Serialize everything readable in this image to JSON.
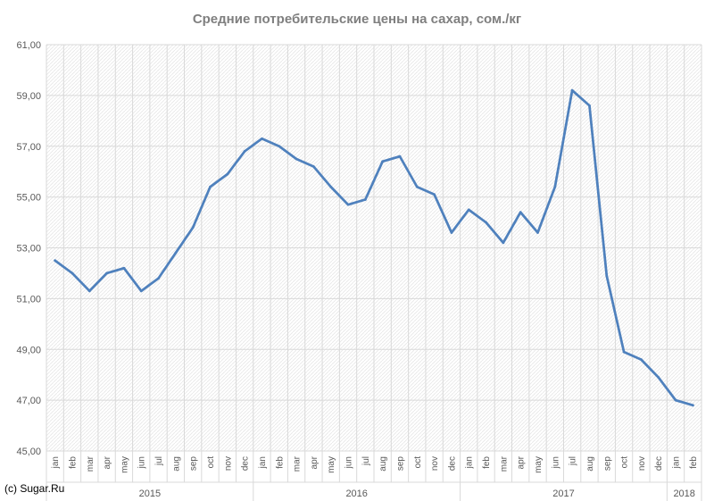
{
  "chart_data": {
    "type": "line",
    "title": "Средние потребительские цены на сахар, сом./кг",
    "ylim": [
      45,
      61
    ],
    "y_ticks": [
      "45,00",
      "47,00",
      "49,00",
      "51,00",
      "53,00",
      "55,00",
      "57,00",
      "59,00",
      "61,00"
    ],
    "grid": true,
    "legend": "none",
    "categories": [
      "jan",
      "feb",
      "mar",
      "apr",
      "may",
      "jun",
      "jul",
      "aug",
      "sep",
      "oct",
      "nov",
      "dec",
      "jan",
      "feb",
      "mar",
      "apr",
      "may",
      "jun",
      "jul",
      "aug",
      "sep",
      "oct",
      "nov",
      "dec",
      "jan",
      "feb",
      "mar",
      "apr",
      "may",
      "jun",
      "jul",
      "aug",
      "sep",
      "oct",
      "nov",
      "dec",
      "jan",
      "feb"
    ],
    "years": [
      {
        "label": "2015",
        "start": 0,
        "count": 12
      },
      {
        "label": "2016",
        "start": 12,
        "count": 12
      },
      {
        "label": "2017",
        "start": 24,
        "count": 12
      },
      {
        "label": "2018",
        "start": 36,
        "count": 2
      }
    ],
    "series": [
      {
        "values": [
          52.5,
          52.0,
          51.3,
          52.0,
          52.2,
          51.3,
          51.8,
          52.8,
          53.8,
          55.4,
          55.9,
          56.8,
          57.3,
          57.0,
          56.5,
          56.2,
          55.4,
          54.7,
          54.9,
          56.4,
          56.6,
          55.4,
          55.1,
          53.6,
          54.5,
          54.0,
          53.2,
          54.4,
          53.6,
          55.4,
          59.2,
          58.6,
          51.9,
          48.9,
          48.6,
          47.9,
          47.0,
          46.8
        ]
      }
    ],
    "line_color": "#4f81bd",
    "grid_color": "#d9d9d9"
  },
  "credit": "(c) Sugar.Ru"
}
